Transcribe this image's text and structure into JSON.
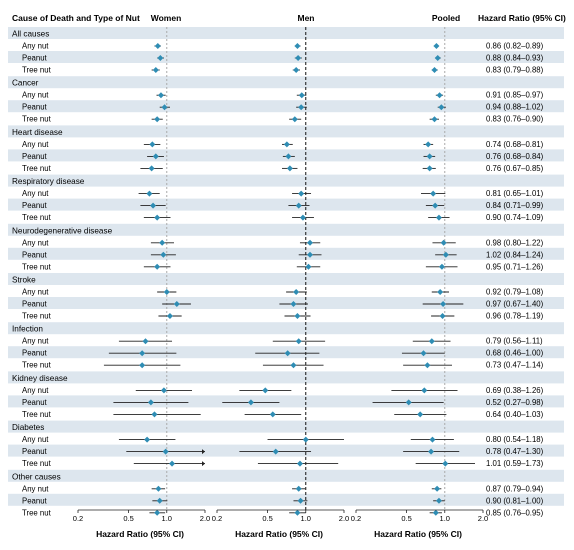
{
  "header": {
    "label_col": "Cause of Death and Type of Nut",
    "hr_col": "Hazard Ratio (95% CI)"
  },
  "panels": [
    {
      "name": "Women"
    },
    {
      "name": "Men"
    },
    {
      "name": "Pooled"
    }
  ],
  "axis_label": "Hazard Ratio (95% CI)",
  "colors": {
    "point": "#2f8db4",
    "stripe": "#dde6ee",
    "ci": "#222222",
    "ref_women": "#a9a9a9",
    "ref_men": "#111111",
    "ref_pooled": "#a9a9a9"
  },
  "chart_data": {
    "type": "forest",
    "scale": "log",
    "xlim": [
      0.2,
      2.0
    ],
    "xticks": [
      "0.2",
      "0.5",
      "1.0",
      "2.0"
    ],
    "reference_line": 1.0,
    "groups": [
      {
        "name": "All causes",
        "rows": [
          {
            "label": "Any nut",
            "women": [
              0.85,
              0.8,
              0.9
            ],
            "men": [
              0.86,
              0.82,
              0.91
            ],
            "pooled": [
              0.86,
              0.82,
              0.89
            ],
            "text": "0.86 (0.82–0.89)"
          },
          {
            "label": "Peanut",
            "women": [
              0.89,
              0.84,
              0.95
            ],
            "men": [
              0.87,
              0.82,
              0.93
            ],
            "pooled": [
              0.88,
              0.84,
              0.93
            ],
            "text": "0.88 (0.84–0.93)"
          },
          {
            "label": "Tree nut",
            "women": [
              0.82,
              0.76,
              0.88
            ],
            "men": [
              0.84,
              0.79,
              0.9
            ],
            "pooled": [
              0.83,
              0.79,
              0.88
            ],
            "text": "0.83 (0.79–0.88)"
          }
        ]
      },
      {
        "name": "Cancer",
        "rows": [
          {
            "label": "Any nut",
            "women": [
              0.9,
              0.83,
              0.98
            ],
            "men": [
              0.93,
              0.85,
              1.01
            ],
            "pooled": [
              0.91,
              0.85,
              0.97
            ],
            "text": "0.91 (0.85–0.97)"
          },
          {
            "label": "Peanut",
            "women": [
              0.96,
              0.88,
              1.06
            ],
            "men": [
              0.92,
              0.84,
              1.02
            ],
            "pooled": [
              0.94,
              0.88,
              1.02
            ],
            "text": "0.94 (0.88–1.02)"
          },
          {
            "label": "Tree nut",
            "women": [
              0.84,
              0.76,
              0.93
            ],
            "men": [
              0.82,
              0.74,
              0.92
            ],
            "pooled": [
              0.83,
              0.76,
              0.9
            ],
            "text": "0.83 (0.76–0.90)"
          }
        ]
      },
      {
        "name": "Heart disease",
        "rows": [
          {
            "label": "Any nut",
            "women": [
              0.77,
              0.66,
              0.89
            ],
            "men": [
              0.71,
              0.65,
              0.79
            ],
            "pooled": [
              0.74,
              0.68,
              0.81
            ],
            "text": "0.74 (0.68–0.81)"
          },
          {
            "label": "Peanut",
            "women": [
              0.82,
              0.7,
              0.95
            ],
            "men": [
              0.73,
              0.66,
              0.82
            ],
            "pooled": [
              0.76,
              0.68,
              0.84
            ],
            "text": "0.76 (0.68–0.84)"
          },
          {
            "label": "Tree nut",
            "women": [
              0.76,
              0.62,
              0.93
            ],
            "men": [
              0.75,
              0.65,
              0.86
            ],
            "pooled": [
              0.76,
              0.67,
              0.85
            ],
            "text": "0.76 (0.67–0.85)"
          }
        ]
      },
      {
        "name": "Respiratory disease",
        "rows": [
          {
            "label": "Any nut",
            "women": [
              0.73,
              0.6,
              0.88
            ],
            "men": [
              0.92,
              0.78,
              1.1
            ],
            "pooled": [
              0.81,
              0.65,
              1.01
            ],
            "text": "0.81 (0.65–1.01)"
          },
          {
            "label": "Peanut",
            "women": [
              0.78,
              0.62,
              0.98
            ],
            "men": [
              0.88,
              0.73,
              1.07
            ],
            "pooled": [
              0.84,
              0.71,
              0.99
            ],
            "text": "0.84 (0.71–0.99)"
          },
          {
            "label": "Tree nut",
            "women": [
              0.84,
              0.66,
              1.07
            ],
            "men": [
              0.95,
              0.78,
              1.16
            ],
            "pooled": [
              0.9,
              0.74,
              1.09
            ],
            "text": "0.90 (0.74–1.09)"
          }
        ]
      },
      {
        "name": "Neurodegenerative disease",
        "rows": [
          {
            "label": "Any nut",
            "women": [
              0.92,
              0.75,
              1.14
            ],
            "men": [
              1.08,
              0.9,
              1.3
            ],
            "pooled": [
              0.98,
              0.8,
              1.22
            ],
            "text": "0.98 (0.80–1.22)"
          },
          {
            "label": "Peanut",
            "women": [
              0.94,
              0.75,
              1.18
            ],
            "men": [
              1.08,
              0.88,
              1.33
            ],
            "pooled": [
              1.02,
              0.84,
              1.24
            ],
            "text": "1.02 (0.84–1.24)"
          },
          {
            "label": "Tree nut",
            "women": [
              0.84,
              0.66,
              1.07
            ],
            "men": [
              1.05,
              0.85,
              1.3
            ],
            "pooled": [
              0.95,
              0.71,
              1.26
            ],
            "text": "0.95 (0.71–1.26)"
          }
        ]
      },
      {
        "name": "Stroke",
        "rows": [
          {
            "label": "Any nut",
            "women": [
              1.0,
              0.84,
              1.19
            ],
            "men": [
              0.84,
              0.7,
              1.02
            ],
            "pooled": [
              0.92,
              0.79,
              1.08
            ],
            "text": "0.92 (0.79–1.08)"
          },
          {
            "label": "Peanut",
            "women": [
              1.2,
              0.92,
              1.55
            ],
            "men": [
              0.8,
              0.62,
              1.04
            ],
            "pooled": [
              0.97,
              0.67,
              1.4
            ],
            "text": "0.97 (0.67–1.40)"
          },
          {
            "label": "Tree nut",
            "women": [
              1.06,
              0.86,
              1.31
            ],
            "men": [
              0.86,
              0.68,
              1.09
            ],
            "pooled": [
              0.96,
              0.78,
              1.19
            ],
            "text": "0.96 (0.78–1.19)"
          }
        ]
      },
      {
        "name": "Infection",
        "rows": [
          {
            "label": "Any nut",
            "women": [
              0.68,
              0.42,
              1.1
            ],
            "men": [
              0.88,
              0.55,
              1.42
            ],
            "pooled": [
              0.79,
              0.56,
              1.11
            ],
            "text": "0.79 (0.56–1.11)"
          },
          {
            "label": "Peanut",
            "women": [
              0.64,
              0.35,
              1.19
            ],
            "men": [
              0.72,
              0.4,
              1.28
            ],
            "pooled": [
              0.68,
              0.46,
              1.0
            ],
            "text": "0.68 (0.46–1.00)"
          },
          {
            "label": "Tree nut",
            "women": [
              0.64,
              0.32,
              1.28
            ],
            "men": [
              0.8,
              0.46,
              1.38
            ],
            "pooled": [
              0.73,
              0.47,
              1.14
            ],
            "text": "0.73 (0.47–1.14)"
          }
        ]
      },
      {
        "name": "Kidney disease",
        "rows": [
          {
            "label": "Any nut",
            "women": [
              0.95,
              0.57,
              1.58
            ],
            "men": [
              0.48,
              0.3,
              0.77
            ],
            "pooled": [
              0.69,
              0.38,
              1.26
            ],
            "text": "0.69 (0.38–1.26)"
          },
          {
            "label": "Peanut",
            "women": [
              0.75,
              0.38,
              1.48
            ],
            "men": [
              0.37,
              0.22,
              0.62
            ],
            "pooled": [
              0.52,
              0.27,
              0.98
            ],
            "text": "0.52 (0.27–0.98)"
          },
          {
            "label": "Tree nut",
            "women": [
              0.8,
              0.38,
              1.85
            ],
            "men": [
              0.55,
              0.33,
              0.92
            ],
            "pooled": [
              0.64,
              0.4,
              1.03
            ],
            "text": "0.64 (0.40–1.03)"
          }
        ]
      },
      {
        "name": "Diabetes",
        "rows": [
          {
            "label": "Any nut",
            "women": [
              0.7,
              0.42,
              1.17
            ],
            "men": [
              1.0,
              0.5,
              2.0
            ],
            "pooled": [
              0.8,
              0.54,
              1.18
            ],
            "text": "0.80 (0.54–1.18)"
          },
          {
            "label": "Peanut",
            "women": [
              0.98,
              0.48,
              2.0
            ],
            "men": [
              0.58,
              0.3,
              1.1
            ],
            "pooled": [
              0.78,
              0.47,
              1.3
            ],
            "text": "0.78 (0.47–1.30)"
          },
          {
            "label": "Tree nut",
            "women": [
              1.1,
              0.55,
              2.0
            ],
            "men": [
              0.9,
              0.42,
              1.8
            ],
            "pooled": [
              1.01,
              0.59,
              1.73
            ],
            "text": "1.01 (0.59–1.73)"
          }
        ]
      },
      {
        "name": "Other causes",
        "rows": [
          {
            "label": "Any nut",
            "women": [
              0.86,
              0.76,
              0.97
            ],
            "men": [
              0.88,
              0.78,
              0.99
            ],
            "pooled": [
              0.87,
              0.79,
              0.94
            ],
            "text": "0.87 (0.79–0.94)"
          },
          {
            "label": "Peanut",
            "women": [
              0.88,
              0.77,
              1.01
            ],
            "men": [
              0.91,
              0.8,
              1.03
            ],
            "pooled": [
              0.9,
              0.81,
              1.0
            ],
            "text": "0.90 (0.81–1.00)"
          },
          {
            "label": "Tree nut",
            "women": [
              0.84,
              0.73,
              0.97
            ],
            "men": [
              0.86,
              0.74,
              1.0
            ],
            "pooled": [
              0.85,
              0.76,
              0.95
            ],
            "text": "0.85 (0.76–0.95)"
          }
        ]
      }
    ]
  }
}
